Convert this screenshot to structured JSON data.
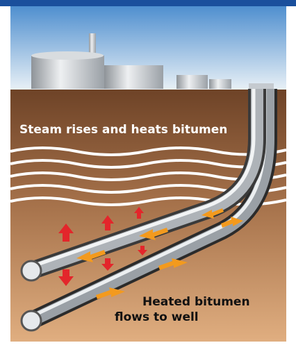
{
  "labels": {
    "steam": "Steam rises and heats bitumen",
    "bitumen_line1": "Heated bitumen",
    "bitumen_line2": "flows to well"
  }
}
